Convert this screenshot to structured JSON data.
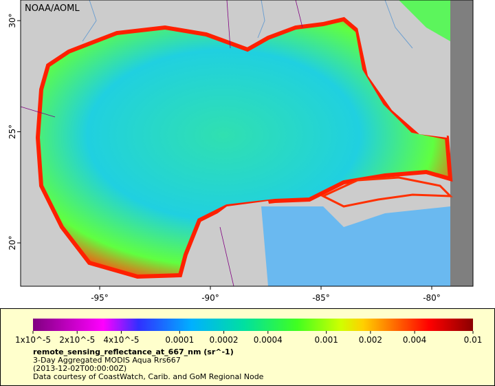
{
  "map": {
    "credit": "NOAA/AOML",
    "lon_labels": [
      "-95°",
      "-90°",
      "-85°",
      "-80°"
    ],
    "lat_labels": [
      "30°",
      "25°",
      "20°"
    ]
  },
  "colorbar": {
    "labels": [
      "1x10^-5",
      "2x10^-5",
      "4x10^-5",
      "0.0001",
      "0.0002",
      "0.0004",
      "0.001",
      "0.002",
      "0.004",
      "0.01"
    ]
  },
  "legend": {
    "variable": "remote_sensing_reflectance_at_667_nm (sr^-1)",
    "lines": [
      "3-Day Aggregated MODIS Aqua Rrs667",
      "(2013-12-02T00:00:00Z)",
      "Data courtesy of CoastWatch, Carib. and GoM Regional Node"
    ]
  }
}
